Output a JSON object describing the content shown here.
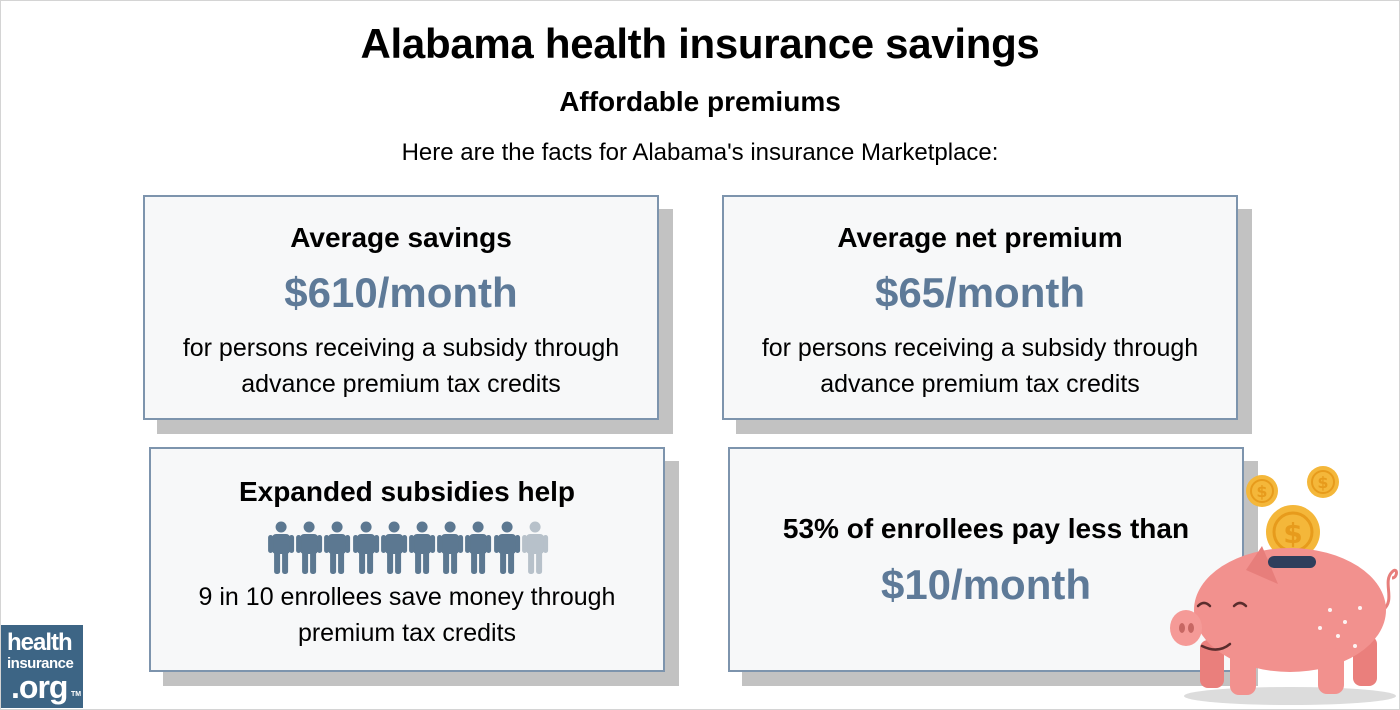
{
  "header": {
    "title": "Alabama health insurance savings",
    "subtitle": "Affordable premiums",
    "intro": "Here are the facts for Alabama's insurance Marketplace:"
  },
  "cards": {
    "average_savings": {
      "label": "Average savings",
      "value": "$610/month",
      "desc_line1": "for persons receiving a subsidy through",
      "desc_line2": "advance premium tax credits"
    },
    "average_net_premium": {
      "label": "Average net premium",
      "value": "$65/month",
      "desc_line1": "for persons receiving a subsidy through",
      "desc_line2": "advance premium tax credits"
    },
    "expanded_subsidies": {
      "label": "Expanded subsidies help",
      "people_total": 10,
      "people_highlighted": 9,
      "desc_line1": "9 in 10 enrollees save money through",
      "desc_line2": "premium tax credits"
    },
    "enrollees_pay_less": {
      "label": "53% of enrollees pay less than",
      "value": "$10/month"
    }
  },
  "logo": {
    "line1": "health",
    "line2": "insurance",
    "line3": ".org",
    "tm": "TM"
  },
  "icons": {
    "person": "person-icon",
    "piggy_bank": "piggy-bank-icon",
    "coin": "dollar-coin-icon"
  },
  "colors": {
    "accent_value": "#5e7a98",
    "card_border": "#7d94ad",
    "card_background": "#f7f8f9",
    "person_highlight": "#5c7891",
    "person_muted": "#b7c1ca",
    "logo_background": "#3d6585",
    "pig": "#f2918e",
    "coin": "#f4b73a"
  }
}
